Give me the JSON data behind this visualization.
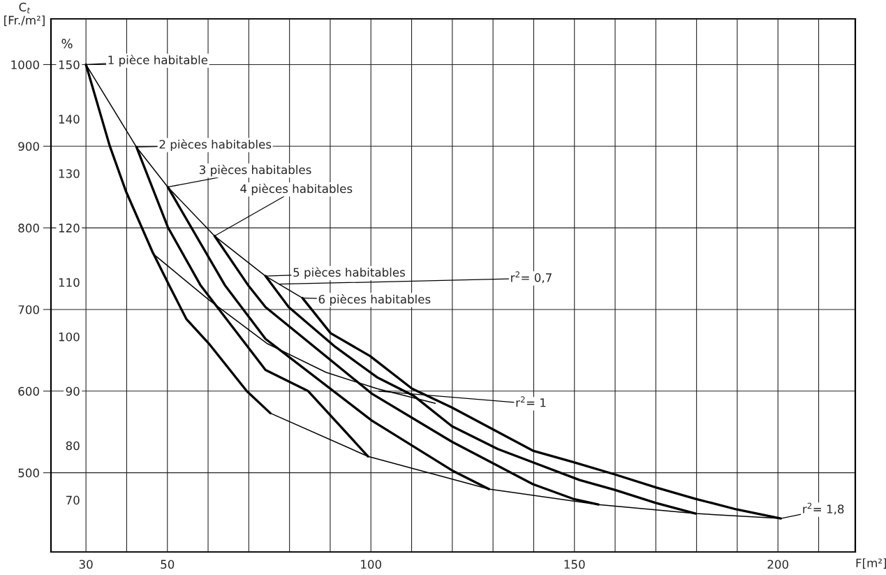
{
  "chart_data": {
    "type": "line",
    "xlabel": "F[m²]",
    "ylabel": "C$_{t}$\n[Fr./m²]",
    "y2label": "%",
    "xlim": [
      21.4,
      219
    ],
    "ylim": [
      403,
      1056
    ],
    "y2lim": [
      60.45,
      158.4
    ],
    "xticks": [
      30,
      {
        "value": 40,
        "label": null
      },
      50,
      {
        "value": 60,
        "label": null
      },
      {
        "value": 70,
        "label": null
      },
      {
        "value": 80,
        "label": null
      },
      {
        "value": 90,
        "label": null
      },
      100,
      {
        "value": 110,
        "label": null
      },
      {
        "value": 120,
        "label": null
      },
      {
        "value": 130,
        "label": null
      },
      {
        "value": 140,
        "label": null
      },
      150,
      {
        "value": 160,
        "label": null
      },
      {
        "value": 170,
        "label": null
      },
      {
        "value": 180,
        "label": null
      },
      {
        "value": 190,
        "label": null
      },
      200,
      {
        "value": 210,
        "label": null
      }
    ],
    "yticks": [
      500,
      600,
      700,
      800,
      900,
      1000
    ],
    "y2ticks": [
      70,
      80,
      90,
      100,
      110,
      120,
      130,
      140,
      150
    ],
    "grid": true,
    "marker": "none",
    "line_style": "solid",
    "series": [
      {
        "color": "#000000",
        "x": [
          30,
          35.8,
          39.8,
          46.3,
          50.6,
          54.7,
          60.4,
          69.5,
          75.3
        ],
        "values": [
          1000,
          901,
          845,
          771,
          728,
          688,
          657,
          600,
          573
        ]
      },
      {
        "color": "#000000",
        "x": [
          42.4,
          50.1,
          58.1,
          74.1,
          84.6,
          99.3
        ],
        "values": [
          899,
          801,
          730,
          626,
          600,
          520
        ]
      },
      {
        "color": "#000000",
        "x": [
          50.1,
          64.1,
          74.1,
          100.2,
          119.9,
          129.0
        ],
        "values": [
          850,
          730,
          664,
          564,
          503,
          480
        ]
      },
      {
        "color": "#000000",
        "x": [
          61.6,
          69.8,
          74.1,
          100.2,
          119.9,
          139.8,
          149.7,
          155.9
        ],
        "values": [
          790,
          730,
          703,
          597,
          538,
          486,
          468,
          461
        ]
      },
      {
        "color": "#000000",
        "x": [
          74.1,
          79.8,
          91.3,
          101.5,
          110.6,
          119.9,
          131.2,
          151.3,
          159.9,
          170.0,
          179.8
        ],
        "values": [
          741,
          703,
          654,
          617,
          594,
          557,
          529,
          491,
          479,
          463,
          450
        ]
      },
      {
        "color": "#000000",
        "x": [
          83.2,
          90.1,
          99.8,
          110.1,
          119.9,
          139.8,
          149.7,
          159.9,
          170.0,
          179.8,
          189.9,
          200.7
        ],
        "values": [
          714,
          671,
          643,
          603,
          580,
          527,
          513,
          498,
          482,
          468,
          455,
          444
        ]
      },
      {
        "color": "#000000",
        "x": [
          30,
          42.4,
          50.1,
          61.6,
          74.1,
          83.2
        ],
        "values": [
          1000,
          899,
          850,
          790,
          741,
          714
        ]
      },
      {
        "color": "#000000",
        "x": [
          46.3,
          60.4,
          74.6,
          89.0,
          101.5,
          115.8
        ],
        "values": [
          769,
          711,
          658,
          623,
          603,
          585
        ]
      },
      {
        "color": "#000000",
        "x": [
          75.3,
          99.3,
          129.0,
          155.9,
          179.8,
          200.7
        ],
        "values": [
          573,
          520,
          480,
          461,
          450,
          444
        ]
      }
    ],
    "annotations": [
      {
        "text": "1 pièce habitable",
        "x": 30,
        "y": 1000
      },
      {
        "text": "2 pièces habitables",
        "x": 42.4,
        "y": 899
      },
      {
        "text": "3 pièces habitables",
        "x": 50.1,
        "y": 850
      },
      {
        "text": "4 pièces habitables",
        "x": 61.6,
        "y": 790
      },
      {
        "text": "5 pièces habitables",
        "x": 74.1,
        "y": 741
      },
      {
        "text": "6 pièces habitables",
        "x": 83.2,
        "y": 714
      },
      {
        "text": "r$^{2}$= 0,7",
        "x": 77.5,
        "y": 731
      },
      {
        "text": "r$^{2}$= 1",
        "x": 101.9,
        "y": 600
      },
      {
        "text": "r$^{2}$= 1,8",
        "x": 200.7,
        "y": 444
      }
    ]
  }
}
